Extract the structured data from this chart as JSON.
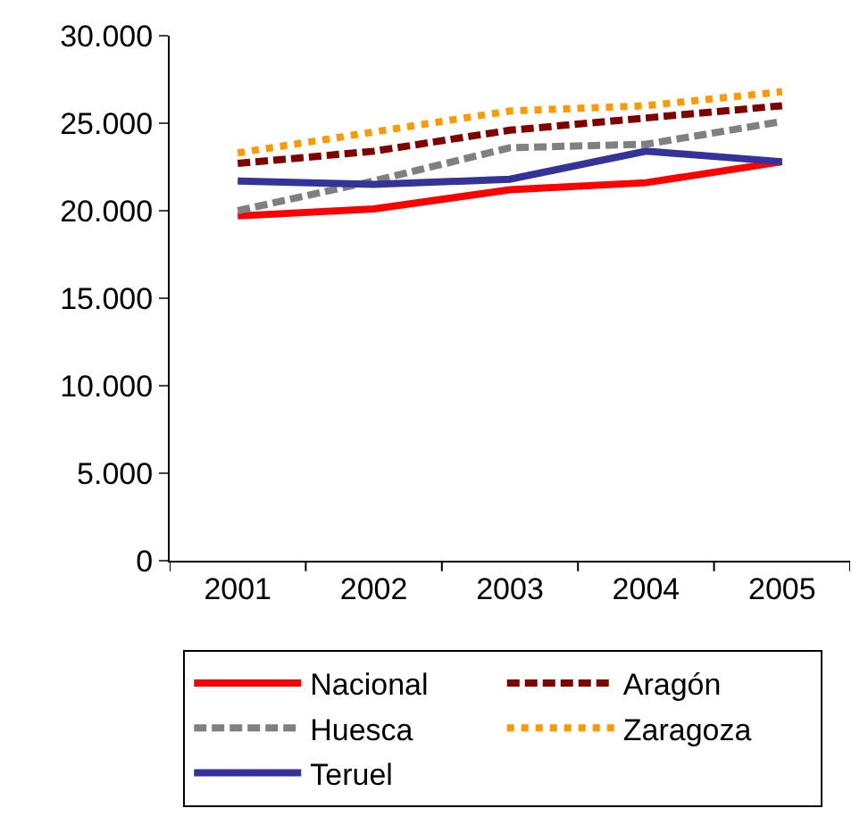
{
  "chart_data": {
    "type": "line",
    "categories": [
      "2001",
      "2002",
      "2003",
      "2004",
      "2005"
    ],
    "series": [
      {
        "name": "Nacional",
        "color": "#ff0000",
        "line_style": "solid",
        "values": [
          19700,
          20100,
          21200,
          21600,
          22800
        ]
      },
      {
        "name": "Aragón",
        "color": "#800000",
        "line_style": "dashed",
        "values": [
          22700,
          23400,
          24600,
          25300,
          26000
        ]
      },
      {
        "name": "Huesca",
        "color": "#808080",
        "line_style": "dashed",
        "values": [
          20000,
          21700,
          23600,
          23800,
          25100
        ]
      },
      {
        "name": "Zaragoza",
        "color": "#ff9900",
        "line_style": "dotted",
        "values": [
          23300,
          24500,
          25700,
          26000,
          26800
        ]
      },
      {
        "name": "Teruel",
        "color": "#333399",
        "line_style": "solid",
        "values": [
          21700,
          21500,
          21800,
          23400,
          22800
        ]
      }
    ],
    "ylim": [
      0,
      30000
    ],
    "yticks": [
      {
        "value": 0,
        "label": "0"
      },
      {
        "value": 5000,
        "label": "5.000"
      },
      {
        "value": 10000,
        "label": "10.000"
      },
      {
        "value": 15000,
        "label": "15.000"
      },
      {
        "value": 20000,
        "label": "20.000"
      },
      {
        "value": 25000,
        "label": "25.000"
      },
      {
        "value": 30000,
        "label": "30.000"
      }
    ],
    "legend": "bottom",
    "marker": "none"
  }
}
